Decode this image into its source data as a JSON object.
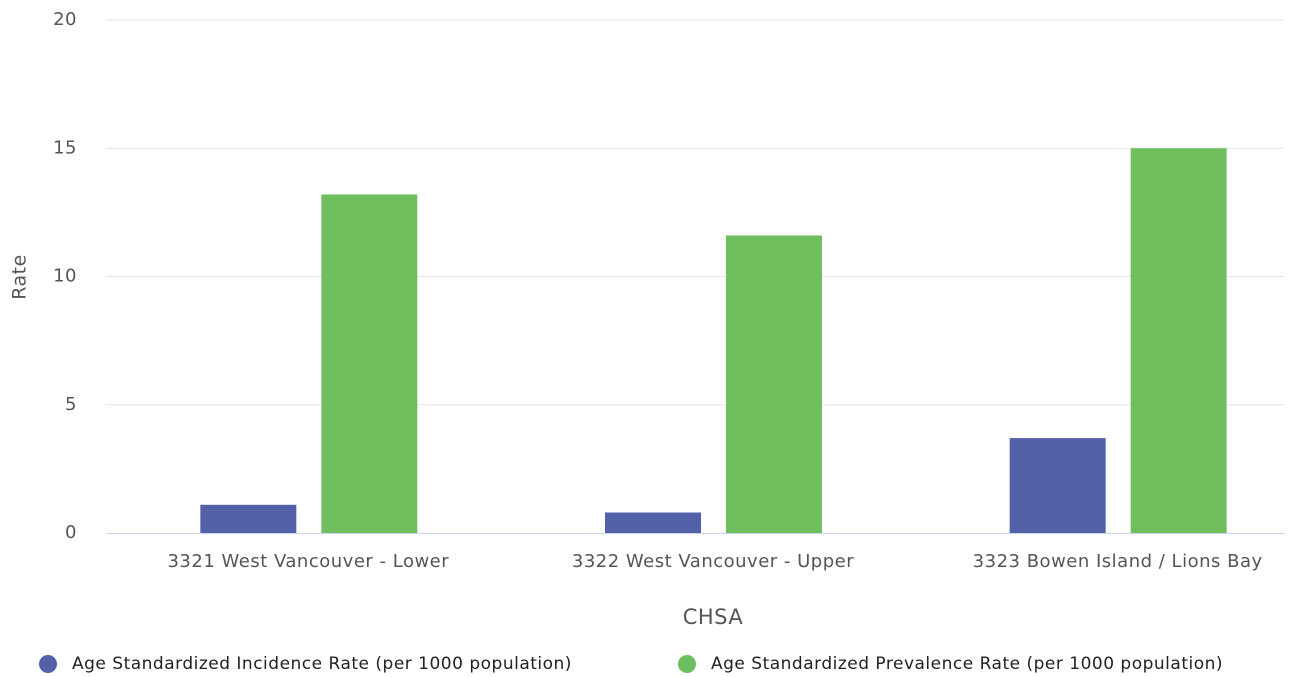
{
  "chart_data": {
    "type": "bar",
    "x_label": "CHSA",
    "y_label": "Rate",
    "categories": [
      "3321 West Vancouver - Lower",
      "3322 West Vancouver - Upper",
      "3323 Bowen Island / Lions Bay"
    ],
    "series": [
      {
        "name": "Age Standardized Incidence Rate (per 1000 population)",
        "color": "#5362a8",
        "values": [
          1.1,
          0.8,
          3.7
        ]
      },
      {
        "name": "Age Standardized Prevalence Rate (per 1000 population)",
        "color": "#70bf5f",
        "values": [
          13.2,
          11.6,
          15.0
        ]
      }
    ],
    "ylim": [
      0,
      20
    ],
    "yticks": [
      0,
      5,
      10,
      15,
      20
    ],
    "grid": true
  }
}
